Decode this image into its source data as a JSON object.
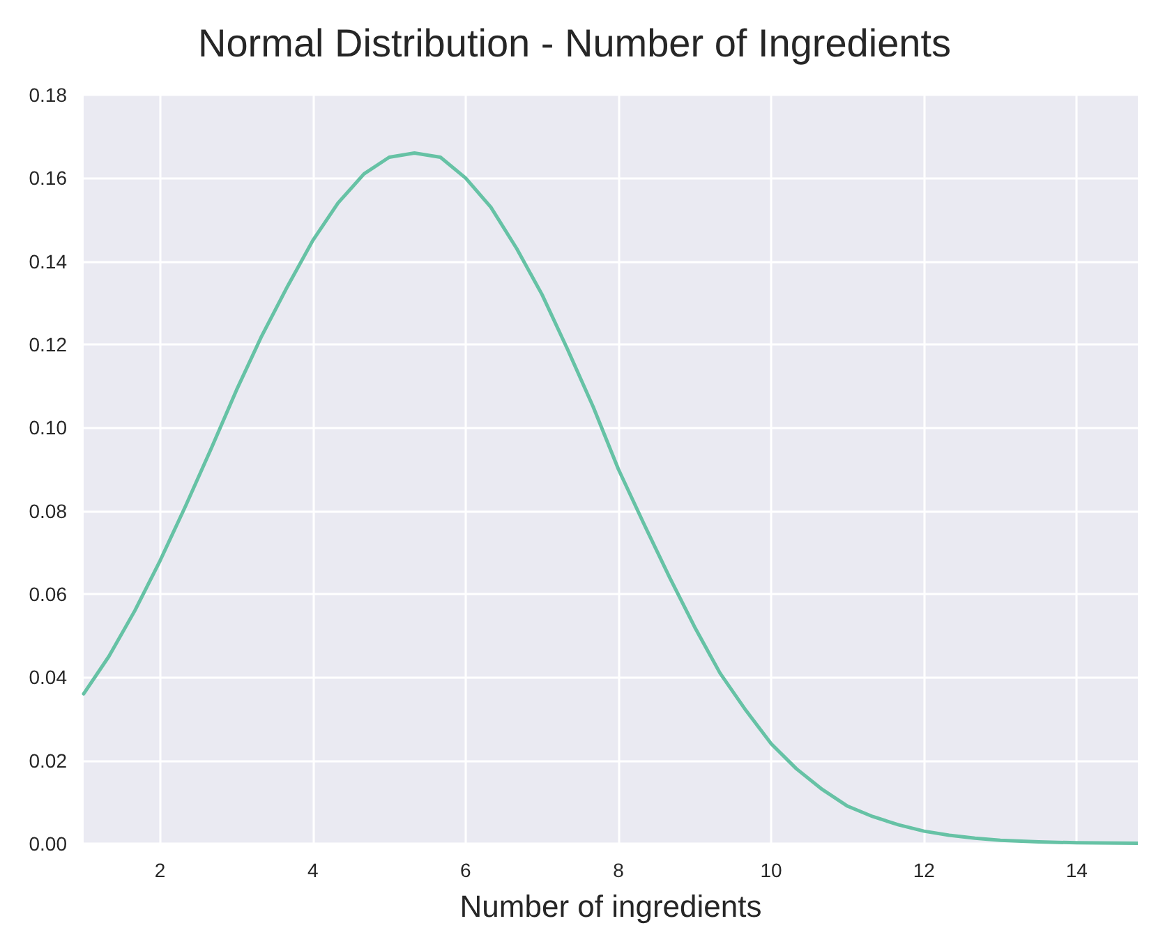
{
  "chart_data": {
    "type": "line",
    "title": "Normal Distribution - Number of Ingredients",
    "xlabel": "Number of ingredients",
    "x": [
      1,
      1.33,
      1.67,
      2,
      2.33,
      2.67,
      3,
      3.33,
      3.67,
      4,
      4.33,
      4.67,
      5,
      5.33,
      5.67,
      6,
      6.33,
      6.67,
      7,
      7.33,
      7.67,
      8,
      8.33,
      8.67,
      9,
      9.33,
      9.67,
      10,
      10.33,
      10.67,
      11,
      11.33,
      11.67,
      12,
      12.33,
      12.67,
      13,
      13.5,
      14,
      14.8
    ],
    "series": [
      {
        "color": "#66c2a5",
        "values": [
          0.036,
          0.045,
          0.056,
          0.068,
          0.081,
          0.095,
          0.109,
          0.122,
          0.134,
          0.145,
          0.154,
          0.161,
          0.165,
          0.166,
          0.165,
          0.16,
          0.153,
          0.143,
          0.132,
          0.119,
          0.105,
          0.09,
          0.077,
          0.064,
          0.052,
          0.041,
          0.032,
          0.024,
          0.018,
          0.013,
          0.009,
          0.0065,
          0.0045,
          0.003,
          0.002,
          0.0013,
          0.0008,
          0.0004,
          0.0002,
          0.0001
        ]
      }
    ],
    "xlim": [
      1,
      14.8
    ],
    "xticks": [
      2,
      4,
      6,
      8,
      10,
      12,
      14
    ],
    "ylim": [
      0,
      0.18
    ],
    "yticks": [
      {
        "value": 0,
        "label": "0.00"
      },
      {
        "value": 0.02,
        "label": "0.02"
      },
      {
        "value": 0.04,
        "label": "0.04"
      },
      {
        "value": 0.06,
        "label": "0.06"
      },
      {
        "value": 0.08,
        "label": "0.08"
      },
      {
        "value": 0.1,
        "label": "0.10"
      },
      {
        "value": 0.12,
        "label": "0.12"
      },
      {
        "value": 0.14,
        "label": "0.14"
      },
      {
        "value": 0.16,
        "label": "0.16"
      },
      {
        "value": 0.18,
        "label": "0.18"
      }
    ],
    "grid": true,
    "marker": "none",
    "line_style": "solid"
  }
}
